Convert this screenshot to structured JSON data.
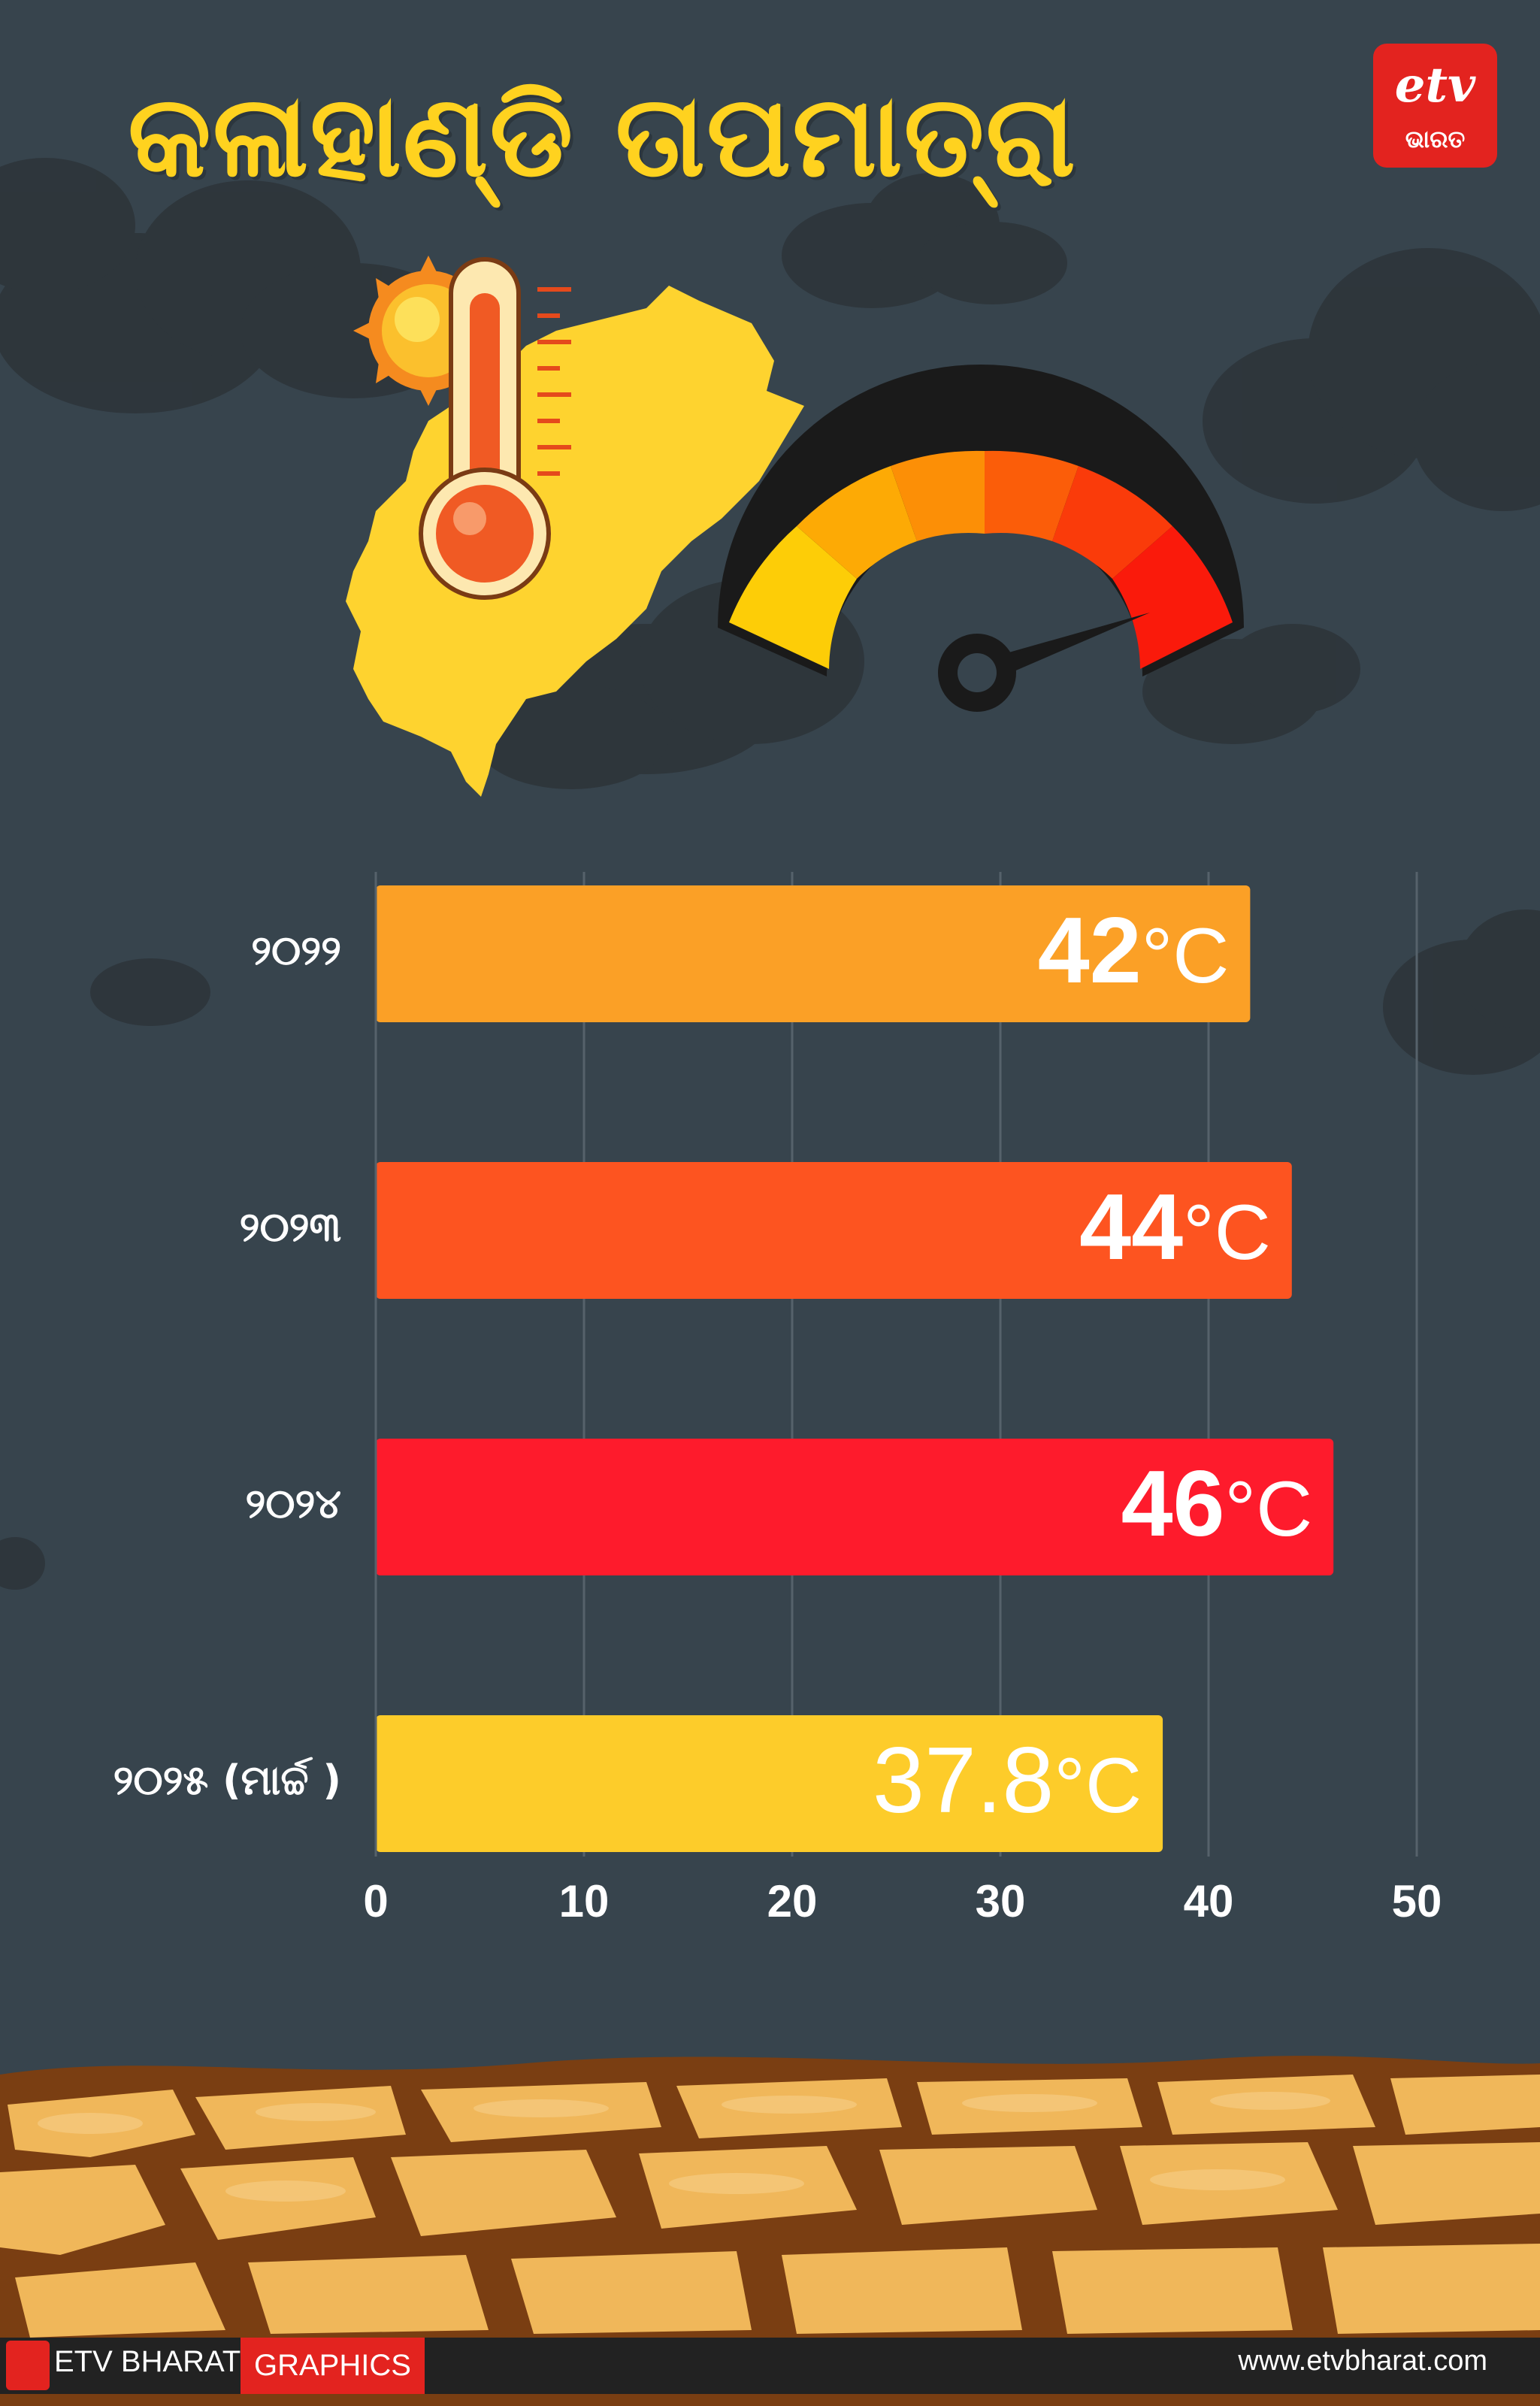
{
  "title": "କଳାହାଣ୍ଡି ତାପମାତ୍ରା",
  "logo": {
    "mark": "etv",
    "text": "ଭାରତ"
  },
  "footer": {
    "brand": "ETV BHARAT",
    "tag": "GRAPHICS",
    "url": "www.etvbharat.com"
  },
  "colors": {
    "background": "#37444d",
    "title": "#ffd21f",
    "bar_2022": "#fba026",
    "bar_2023": "#fd5420",
    "bar_2024": "#fe1b2c",
    "bar_2025": "#fdcc2a"
  },
  "icons": [
    "sun-icon",
    "thermometer-icon",
    "kalahandi-map-icon",
    "gauge-icon",
    "cloud-icon",
    "cracked-earth-icon"
  ],
  "chart_data": {
    "type": "bar",
    "orientation": "horizontal",
    "categories": [
      "୨୦୨୨",
      "୨୦୨୩",
      "୨୦୨୪",
      "୨୦୨୫ (ମାର୍ଚ୍ଚ )"
    ],
    "values": [
      42,
      44,
      46,
      37.8
    ],
    "value_labels": [
      "42",
      "44",
      "46",
      "37.8"
    ],
    "unit": "°C",
    "xlim": [
      0,
      50
    ],
    "xticks": [
      "0",
      "10",
      "20",
      "30",
      "40",
      "50"
    ],
    "grid": true
  }
}
